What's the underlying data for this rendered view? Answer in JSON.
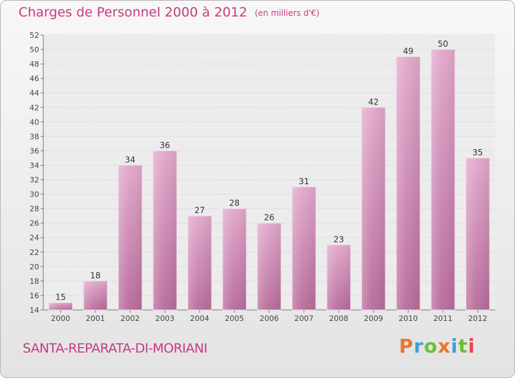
{
  "header": {
    "title": "Charges de Personnel 2000 à 2012",
    "subtitle": "(en milliers d'€)"
  },
  "footer": {
    "commune": "SANTA-REPARATA-DI-MORIANI",
    "logo": "Proxiti"
  },
  "colors": {
    "accent": "#c73b7e",
    "bar_top": "#e2a8cc",
    "bar_bottom": "#b86c9b",
    "logo_letters": [
      "#e8762d",
      "#3fa0d8",
      "#6dbf3b",
      "#e8762d",
      "#3fa0d8",
      "#6dbf3b",
      "#e84a4a"
    ]
  },
  "chart_data": {
    "type": "bar",
    "categories": [
      "2000",
      "2001",
      "2002",
      "2003",
      "2004",
      "2005",
      "2006",
      "2007",
      "2008",
      "2009",
      "2010",
      "2011",
      "2012"
    ],
    "values": [
      15,
      18,
      34,
      36,
      27,
      28,
      26,
      31,
      23,
      42,
      49,
      50,
      35
    ],
    "ylim": [
      14,
      52
    ],
    "yticks": [
      "14",
      "16",
      "18",
      "20",
      "22",
      "24",
      "26",
      "28",
      "30",
      "32",
      "34",
      "36",
      "38",
      "40",
      "42",
      "44",
      "46",
      "48",
      "50",
      "52"
    ],
    "grid": true
  }
}
